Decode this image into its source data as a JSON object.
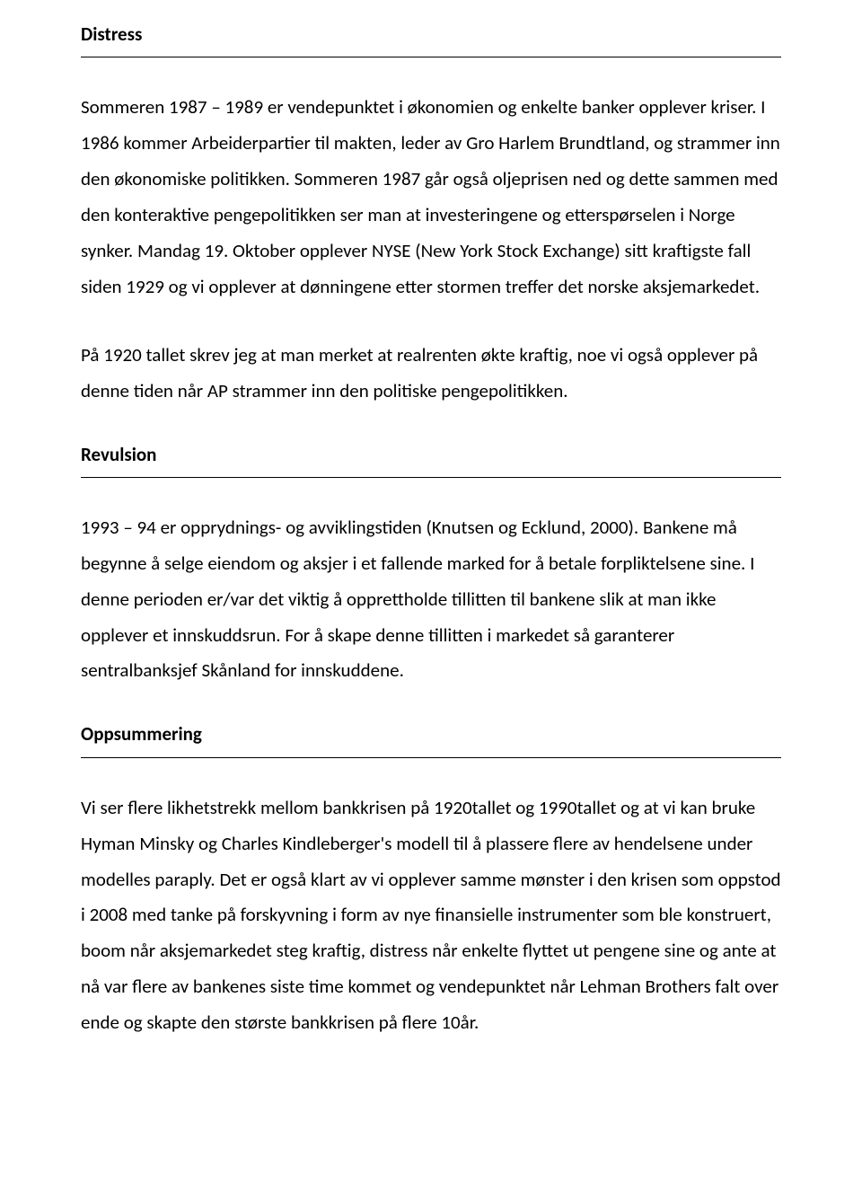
{
  "sections": {
    "distress": {
      "title": "Distress",
      "p1": "Sommeren 1987 – 1989 er vendepunktet i økonomien og enkelte banker opplever kriser. I 1986 kommer Arbeiderpartier til makten, leder av Gro Harlem Brundtland, og strammer inn den økonomiske politikken. Sommeren 1987 går også oljeprisen ned og dette sammen med den konteraktive pengepolitikken ser man at investeringene og etterspørselen i Norge synker. Mandag 19. Oktober opplever NYSE (New York Stock Exchange) sitt kraftigste fall siden 1929 og vi opplever at dønningene etter stormen treffer det norske aksjemarkedet.",
      "p2": "På 1920 tallet skrev jeg at man merket at realrenten økte kraftig, noe vi også opplever på denne tiden når AP strammer inn den politiske pengepolitikken."
    },
    "revulsion": {
      "title": "Revulsion",
      "p1": "1993 – 94 er opprydnings- og avviklingstiden (Knutsen og Ecklund, 2000). Bankene må begynne å selge eiendom og aksjer i et fallende marked for å betale forpliktelsene sine. I denne perioden er/var det viktig å opprettholde tillitten til bankene slik at man ikke opplever et innskuddsrun. For å skape denne tillitten i markedet så garanterer sentralbanksjef Skånland for innskuddene."
    },
    "oppsummering": {
      "title": "Oppsummering",
      "p1": "Vi ser flere likhetstrekk mellom bankkrisen på 1920tallet og 1990tallet og at vi kan bruke Hyman Minsky og Charles Kindleberger's modell til å plassere flere av hendelsene under modelles paraply. Det er også klart av vi opplever samme mønster i den krisen som oppstod i 2008 med tanke på forskyvning i form av nye finansielle instrumenter som ble konstruert, boom når aksjemarkedet steg kraftig, distress når enkelte flyttet ut pengene sine og ante at nå var flere av bankenes siste time kommet og vendepunktet når Lehman Brothers falt over ende og skapte den største bankkrisen på flere 10år."
    }
  },
  "style": {
    "text_color": "#000000",
    "background_color": "#ffffff",
    "rule_color": "#000000",
    "font_family": "Calibri",
    "heading_fontsize_pt": 16,
    "body_fontsize_pt": 16,
    "line_height": 1.9
  }
}
